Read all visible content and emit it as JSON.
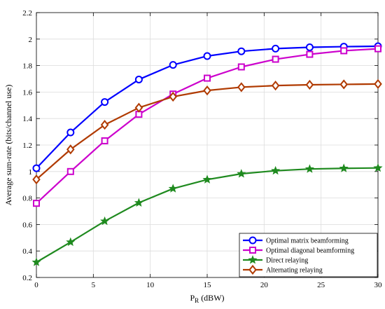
{
  "chart_data": {
    "type": "line",
    "xlabel": "P",
    "xlabel_sub": "R",
    "xlabel_unit": " (dBW)",
    "ylabel": "Average sum-rate (bits/channel use)",
    "xlim": [
      0,
      30
    ],
    "ylim": [
      0.2,
      2.2
    ],
    "xticks": [
      0,
      5,
      10,
      15,
      20,
      25,
      30
    ],
    "yticks": [
      0.2,
      0.4,
      0.6,
      0.8,
      1,
      1.2,
      1.4,
      1.6,
      1.8,
      2,
      2.2
    ],
    "grid": true,
    "legend_position": "bottom-right",
    "x": [
      0,
      3,
      6,
      9,
      12,
      15,
      18,
      21,
      24,
      27,
      30
    ],
    "series": [
      {
        "name": "Optimal matrix beamforming",
        "color": "#0000ff",
        "marker": "circle",
        "values": [
          1.025,
          1.295,
          1.525,
          1.695,
          1.805,
          1.872,
          1.908,
          1.928,
          1.938,
          1.943,
          1.946
        ]
      },
      {
        "name": "Optimal diagonal beamforming",
        "color": "#cc00cc",
        "marker": "square",
        "values": [
          0.76,
          1.0,
          1.232,
          1.432,
          1.585,
          1.705,
          1.79,
          1.848,
          1.885,
          1.912,
          1.927
        ]
      },
      {
        "name": "Direct relaying",
        "color": "#1f8a1f",
        "marker": "star",
        "values": [
          0.315,
          0.467,
          0.625,
          0.764,
          0.871,
          0.939,
          0.983,
          1.006,
          1.019,
          1.024,
          1.027
        ]
      },
      {
        "name": "Alternating relaying",
        "color": "#b03a00",
        "marker": "diamond",
        "values": [
          0.94,
          1.167,
          1.353,
          1.482,
          1.565,
          1.612,
          1.637,
          1.649,
          1.655,
          1.658,
          1.661
        ]
      }
    ]
  }
}
